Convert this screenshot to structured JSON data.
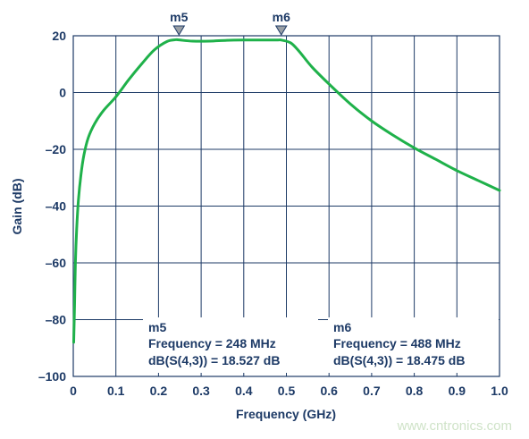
{
  "chart_data": {
    "type": "line",
    "title": "",
    "xlabel": "Frequency (GHz)",
    "ylabel": "Gain (dB)",
    "xlim": [
      0,
      1.0
    ],
    "ylim": [
      -100,
      20
    ],
    "x_ticks": [
      0,
      0.1,
      0.2,
      0.3,
      0.4,
      0.5,
      0.6,
      0.7,
      0.8,
      0.9,
      1.0
    ],
    "x_tick_labels": [
      "0",
      "0.1",
      "0.2",
      "0.3",
      "0.4",
      "0.5",
      "0.6",
      "0.7",
      "0.8",
      "0.9",
      "1.0"
    ],
    "y_ticks": [
      20,
      0,
      -20,
      -40,
      -60,
      -80,
      -100
    ],
    "y_tick_labels": [
      "20",
      "0",
      "–20",
      "–40",
      "–60",
      "–80",
      "–100"
    ],
    "grid": true,
    "series_color": "#1fb14a",
    "series": [
      {
        "x": [
          0.001,
          0.003,
          0.005,
          0.008,
          0.012,
          0.018,
          0.025,
          0.035,
          0.05,
          0.07,
          0.1,
          0.13,
          0.16,
          0.19,
          0.22,
          0.24,
          0.248,
          0.28,
          0.32,
          0.36,
          0.4,
          0.44,
          0.48,
          0.488,
          0.51,
          0.53,
          0.56,
          0.6,
          0.65,
          0.7,
          0.75,
          0.8,
          0.85,
          0.9,
          0.95,
          1.0
        ],
        "y": [
          -88,
          -75,
          -60,
          -48,
          -38,
          -29,
          -22,
          -16,
          -11,
          -6.5,
          -1.5,
          4.5,
          10,
          15,
          18,
          18.6,
          18.527,
          18.1,
          18.1,
          18.4,
          18.5,
          18.5,
          18.5,
          18.475,
          17.5,
          14.5,
          9,
          3,
          -4,
          -10,
          -15,
          -19.5,
          -23.5,
          -27.5,
          -31,
          -34.5
        ]
      }
    ],
    "markers": [
      {
        "name": "m5",
        "x": 0.248,
        "y": 18.527,
        "frequency_text": "Frequency = 248 MHz",
        "value_text": "dB(S(4,3)) = 18.527 dB"
      },
      {
        "name": "m6",
        "x": 0.488,
        "y": 18.475,
        "frequency_text": "Frequency = 488 MHz",
        "value_text": "dB(S(4,3)) = 18.475 dB"
      }
    ]
  },
  "watermark": "www.cntronics.com"
}
